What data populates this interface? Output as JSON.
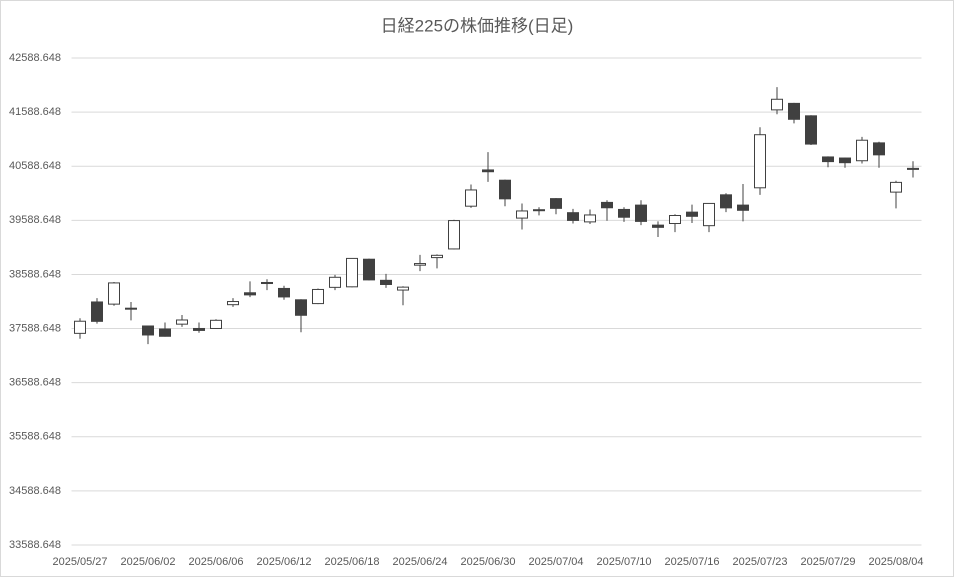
{
  "chart_data": {
    "type": "candlestick",
    "title": "日経225の株価推移(日足)",
    "categories": [
      "2025/05/27",
      null,
      null,
      null,
      "2025/06/02",
      null,
      null,
      null,
      "2025/06/06",
      null,
      null,
      null,
      "2025/06/12",
      null,
      null,
      null,
      "2025/06/18",
      null,
      null,
      null,
      "2025/06/24",
      null,
      null,
      null,
      "2025/06/30",
      null,
      null,
      null,
      "2025/07/04",
      null,
      null,
      null,
      "2025/07/10",
      null,
      null,
      null,
      "2025/07/16",
      null,
      null,
      null,
      "2025/07/23",
      null,
      null,
      null,
      "2025/07/29",
      null,
      null,
      null,
      "2025/08/04",
      null
    ],
    "open": [
      37500,
      38080,
      38040,
      37950,
      37636,
      37580,
      37670,
      37590,
      37590,
      38030,
      38250,
      38440,
      38330,
      38120,
      38050,
      38350,
      38360,
      38870,
      38480,
      38300,
      38760,
      38900,
      39060,
      39850,
      40520,
      40330,
      39630,
      39770,
      39990,
      39730,
      39560,
      39920,
      39790,
      39870,
      39500,
      39530,
      39740,
      39490,
      40060,
      39870,
      40190,
      41630,
      41750,
      41520,
      40760,
      40740,
      40690,
      41020,
      40110,
      40530
    ],
    "high": [
      37780,
      38150,
      38450,
      38080,
      37640,
      37700,
      37840,
      37700,
      37760,
      38150,
      38460,
      38500,
      38380,
      38130,
      38330,
      38580,
      38890,
      38880,
      38600,
      38370,
      38950,
      38960,
      39600,
      40250,
      40850,
      40340,
      39900,
      39830,
      40000,
      39800,
      39790,
      39960,
      39830,
      39960,
      39570,
      39700,
      39880,
      39910,
      40090,
      40260,
      41310,
      42050,
      41760,
      41530,
      40770,
      40750,
      41130,
      41040,
      40320,
      40680
    ],
    "low": [
      37400,
      37680,
      38010,
      37740,
      37300,
      37440,
      37620,
      37510,
      37580,
      37990,
      38170,
      38300,
      38120,
      37520,
      38040,
      38300,
      38350,
      38480,
      38340,
      38020,
      38650,
      38700,
      39050,
      39820,
      40300,
      39850,
      39420,
      39680,
      39700,
      39530,
      39520,
      39580,
      39560,
      39500,
      39280,
      39370,
      39540,
      39370,
      39740,
      39570,
      40060,
      41550,
      41380,
      40980,
      40570,
      40560,
      40640,
      40560,
      39810,
      40380
    ],
    "close": [
      37724,
      37722,
      38432,
      37965,
      37470,
      37446,
      37747,
      37554,
      37741,
      38088,
      38211,
      38421,
      38173,
      37834,
      38311,
      38536,
      38885,
      38488,
      38403,
      38354,
      38790,
      38942,
      39584,
      40150,
      40487,
      39986,
      39762,
      39785,
      39810,
      39587,
      39688,
      39821,
      39646,
      39569,
      39459,
      39678,
      39663,
      39901,
      39819,
      39774,
      41171,
      41826,
      41456,
      40998,
      40674,
      40654,
      41069,
      40799,
      40290,
      40549
    ],
    "up_color": "#ffffff",
    "down_color": "#404040",
    "ylim": [
      33588.648,
      42588.648
    ],
    "yticks": [
      33588.648,
      34588.648,
      35588.648,
      36588.648,
      37588.648,
      38588.648,
      39588.648,
      40588.648,
      41588.648,
      42588.648
    ],
    "grid": true
  }
}
